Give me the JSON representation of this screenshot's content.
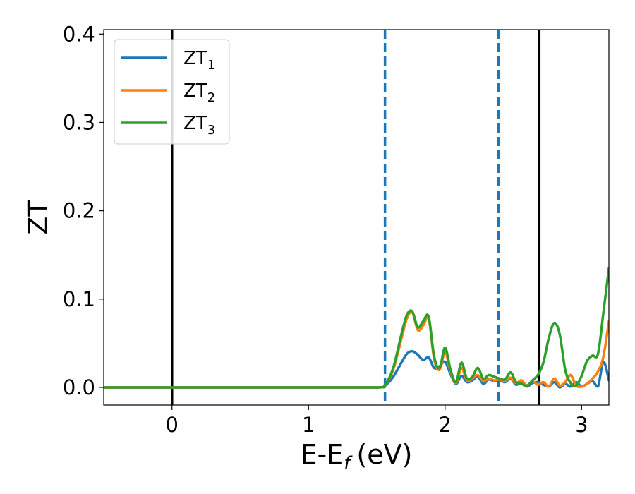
{
  "chart_data": {
    "type": "line",
    "xlabel": "E-E",
    "xlabel_sub": "f",
    "xlabel_unit": "(eV)",
    "ylabel": "ZT",
    "xlim": [
      -0.5,
      3.2
    ],
    "ylim": [
      -0.02,
      0.405
    ],
    "xticks": [
      0,
      1,
      2,
      3
    ],
    "xtick_labels": [
      "0",
      "1",
      "2",
      "3"
    ],
    "yticks": [
      0.0,
      0.1,
      0.2,
      0.3,
      0.4
    ],
    "ytick_labels": [
      "0.0",
      "0.1",
      "0.2",
      "0.3",
      "0.4"
    ],
    "grid": false,
    "legend_position": "upper-left",
    "vlines": [
      {
        "x": 0.0,
        "style": "solid",
        "color": "#000000"
      },
      {
        "x": 1.56,
        "style": "dashed",
        "color": "#1f77b4"
      },
      {
        "x": 2.39,
        "style": "dashed",
        "color": "#1f77b4"
      },
      {
        "x": 2.69,
        "style": "solid",
        "color": "#000000"
      }
    ],
    "series": [
      {
        "name": "ZT",
        "subscript": "1",
        "color": "#1f77b4",
        "x": [
          -0.5,
          1.0,
          1.5,
          1.56,
          1.62,
          1.68,
          1.72,
          1.76,
          1.8,
          1.84,
          1.88,
          1.92,
          1.96,
          2.0,
          2.04,
          2.08,
          2.12,
          2.16,
          2.2,
          2.24,
          2.28,
          2.32,
          2.36,
          2.4,
          2.44,
          2.48,
          2.52,
          2.56,
          2.6,
          2.64,
          2.68,
          2.72,
          2.76,
          2.8,
          2.84,
          2.88,
          2.92,
          2.96,
          3.0,
          3.04,
          3.08,
          3.12,
          3.16,
          3.2
        ],
        "y": [
          0.0,
          0.0,
          0.0,
          0.002,
          0.012,
          0.028,
          0.038,
          0.041,
          0.037,
          0.031,
          0.034,
          0.022,
          0.024,
          0.029,
          0.015,
          0.004,
          0.013,
          0.006,
          0.008,
          0.012,
          0.004,
          0.009,
          0.007,
          0.008,
          0.006,
          0.01,
          0.003,
          0.006,
          0.001,
          0.005,
          0.006,
          0.003,
          0.001,
          0.006,
          0.0,
          0.004,
          0.001,
          0.006,
          0.001,
          0.004,
          0.007,
          0.001,
          0.029,
          0.008
        ]
      },
      {
        "name": "ZT",
        "subscript": "2",
        "color": "#ff7f0e",
        "x": [
          -0.5,
          1.0,
          1.5,
          1.56,
          1.62,
          1.68,
          1.72,
          1.76,
          1.8,
          1.84,
          1.88,
          1.92,
          1.96,
          2.0,
          2.04,
          2.08,
          2.12,
          2.16,
          2.2,
          2.24,
          2.28,
          2.32,
          2.36,
          2.4,
          2.44,
          2.48,
          2.52,
          2.56,
          2.6,
          2.64,
          2.68,
          2.72,
          2.76,
          2.8,
          2.84,
          2.88,
          2.92,
          2.96,
          3.0,
          3.04,
          3.08,
          3.12,
          3.16,
          3.2
        ],
        "y": [
          0.0,
          0.0,
          0.0,
          0.003,
          0.02,
          0.055,
          0.078,
          0.085,
          0.065,
          0.07,
          0.078,
          0.032,
          0.02,
          0.04,
          0.018,
          0.005,
          0.022,
          0.008,
          0.01,
          0.014,
          0.007,
          0.01,
          0.008,
          0.009,
          0.007,
          0.011,
          0.005,
          0.008,
          0.002,
          0.007,
          0.003,
          0.006,
          0.001,
          0.01,
          0.002,
          0.006,
          0.014,
          0.002,
          0.001,
          0.004,
          0.01,
          0.018,
          0.035,
          0.075
        ]
      },
      {
        "name": "ZT",
        "subscript": "3",
        "color": "#2ca02c",
        "x": [
          -0.5,
          1.0,
          1.5,
          1.56,
          1.62,
          1.68,
          1.72,
          1.76,
          1.8,
          1.84,
          1.88,
          1.92,
          1.96,
          2.0,
          2.04,
          2.08,
          2.12,
          2.16,
          2.2,
          2.24,
          2.28,
          2.32,
          2.36,
          2.4,
          2.44,
          2.48,
          2.52,
          2.56,
          2.6,
          2.64,
          2.68,
          2.72,
          2.76,
          2.8,
          2.84,
          2.88,
          2.92,
          2.96,
          3.0,
          3.04,
          3.08,
          3.12,
          3.16,
          3.2
        ],
        "y": [
          0.0,
          0.0,
          0.0,
          0.003,
          0.022,
          0.06,
          0.082,
          0.086,
          0.068,
          0.075,
          0.08,
          0.035,
          0.022,
          0.045,
          0.02,
          0.006,
          0.028,
          0.01,
          0.012,
          0.022,
          0.01,
          0.014,
          0.012,
          0.01,
          0.009,
          0.017,
          0.006,
          0.004,
          0.002,
          0.008,
          0.014,
          0.028,
          0.056,
          0.073,
          0.06,
          0.02,
          0.005,
          0.002,
          0.013,
          0.03,
          0.036,
          0.038,
          0.085,
          0.135
        ]
      }
    ]
  }
}
